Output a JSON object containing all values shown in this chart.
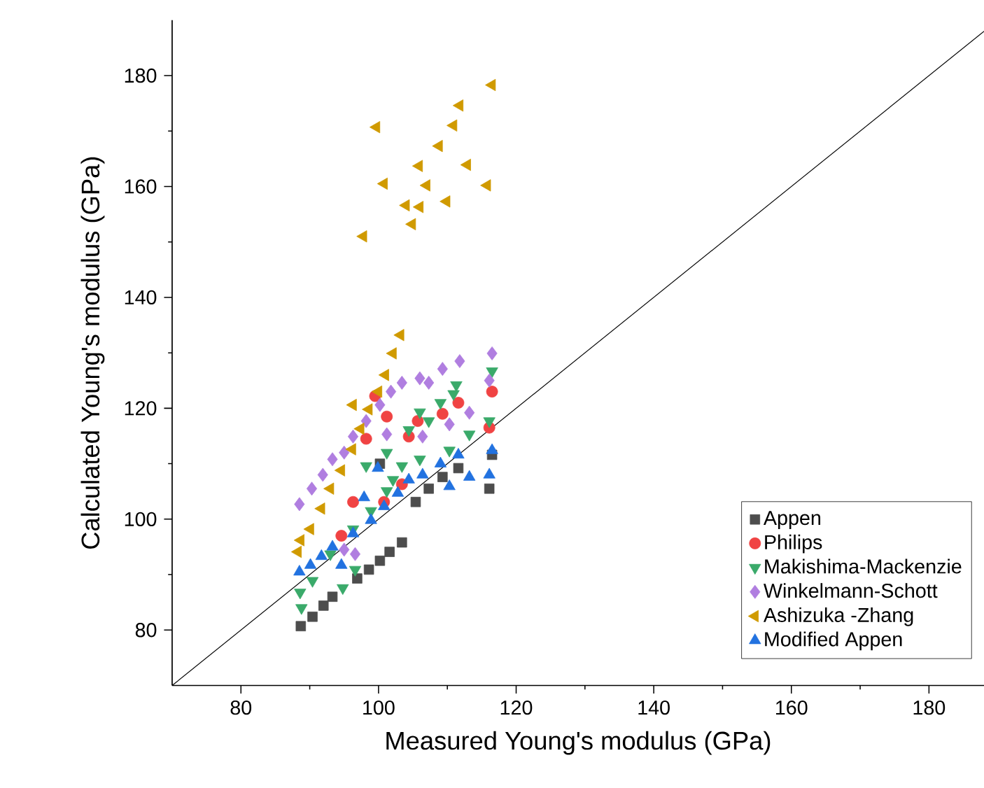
{
  "chart_data": {
    "type": "scatter",
    "xlabel": "Measured Young's modulus (GPa)",
    "ylabel": "Calculated Young's modulus (GPa)",
    "xlim": [
      70,
      188
    ],
    "ylim": [
      70,
      190
    ],
    "xticks": [
      80,
      100,
      120,
      140,
      160,
      180
    ],
    "yticks": [
      80,
      100,
      120,
      140,
      160,
      180
    ],
    "legend": "bottom right",
    "series": [
      {
        "name": "Appen",
        "color": "#4d4d4d",
        "marker": "square",
        "x": [
          88.7,
          90.4,
          92,
          93.3,
          96.9,
          98.6,
          100.2,
          101.6,
          103.4,
          100.2,
          105.4,
          107.3,
          109.3,
          111.6,
          116.1,
          116.5
        ],
        "values": [
          80.7,
          82.4,
          84.4,
          86,
          89.3,
          90.9,
          92.5,
          94.1,
          95.8,
          110,
          103.1,
          105.5,
          107.6,
          109.2,
          105.5,
          111.6
        ]
      },
      {
        "name": "Philips",
        "color": "#f04343",
        "marker": "circle",
        "x": [
          94.6,
          96.3,
          98.2,
          101.2,
          104.4,
          105.7,
          109.3,
          111.6,
          116.5,
          116.1,
          100.8,
          103.4,
          99.5
        ],
        "values": [
          97,
          103.1,
          114.5,
          118.5,
          114.9,
          117.7,
          119,
          121,
          123,
          116.5,
          103.1,
          106.3,
          122.2
        ]
      },
      {
        "name": "Makishima-Mackenzie",
        "color": "#3aaa6a",
        "marker": "triangle-down",
        "x": [
          88.8,
          88.6,
          90.4,
          94.8,
          96.6,
          93,
          96.3,
          98.2,
          101.2,
          103.4,
          102.1,
          101.2,
          104.4,
          106,
          107.3,
          109,
          111.3,
          110.9,
          116.5,
          116.1,
          113.2,
          110.3,
          106,
          98.9
        ],
        "values": [
          84,
          86.8,
          88.9,
          87.6,
          90.9,
          93.7,
          98.2,
          109.6,
          112,
          109.6,
          107.1,
          105.1,
          116.1,
          119.3,
          117.7,
          121,
          124.2,
          122.6,
          126.7,
          117.7,
          115.3,
          112.4,
          110.8,
          101.5
        ]
      },
      {
        "name": "Winkelmann-Schott",
        "color": "#b07ee0",
        "marker": "diamond",
        "x": [
          88.5,
          90.3,
          91.9,
          93.3,
          95,
          96.3,
          98.2,
          100.2,
          101.8,
          103.4,
          106,
          107.3,
          109.3,
          111.8,
          116.5,
          116.1,
          113.2,
          110.3,
          106.4,
          101.2,
          96.6,
          95
        ],
        "values": [
          102.7,
          105.5,
          108,
          110.8,
          112,
          114.9,
          117.7,
          120.6,
          123,
          124.6,
          125.4,
          124.6,
          127.1,
          128.5,
          129.9,
          125,
          119.2,
          117.1,
          114.9,
          115.3,
          93.7,
          94.5
        ]
      },
      {
        "name": "Ashizuka -Zhang",
        "color": "#d09a00",
        "marker": "triangle-left",
        "x": [
          116.5,
          111.8,
          99.7,
          110.9,
          108.8,
          105.9,
          112.9,
          100.8,
          107,
          115.8,
          104,
          106,
          109.9,
          104.9,
          97.8,
          103.2,
          102.1,
          101,
          100,
          96.3,
          98.6,
          97.4,
          96.2,
          94.6,
          93,
          91.7,
          90.1,
          88.7,
          88.3
        ],
        "values": [
          178.3,
          174.6,
          170.7,
          171,
          167.3,
          163.7,
          163.9,
          160.5,
          160.2,
          160.2,
          156.6,
          156.3,
          157.3,
          153.2,
          151,
          133.2,
          129.9,
          126,
          123,
          120.6,
          119.8,
          116.3,
          112.6,
          108.8,
          105.5,
          101.9,
          98.2,
          96.2,
          94.1
        ]
      },
      {
        "name": "Modified Appen",
        "color": "#2272e0",
        "marker": "triangle",
        "x": [
          88.5,
          90.1,
          91.7,
          94.6,
          93.3,
          96.3,
          97.9,
          99.9,
          98.9,
          100.8,
          102.8,
          104.4,
          106.4,
          109,
          111.6,
          110.3,
          113.2,
          116.1,
          116.5
        ],
        "values": [
          90.5,
          91.7,
          93.3,
          91.7,
          95,
          97.4,
          103.9,
          109.2,
          99.8,
          102.3,
          104.7,
          107.1,
          108,
          110,
          111.6,
          105.9,
          107.6,
          108,
          112.4
        ]
      },
      {
        "type": "line",
        "color": "#000000",
        "marker": "none",
        "x": [
          70,
          188
        ],
        "values": [
          70,
          188
        ]
      }
    ]
  }
}
